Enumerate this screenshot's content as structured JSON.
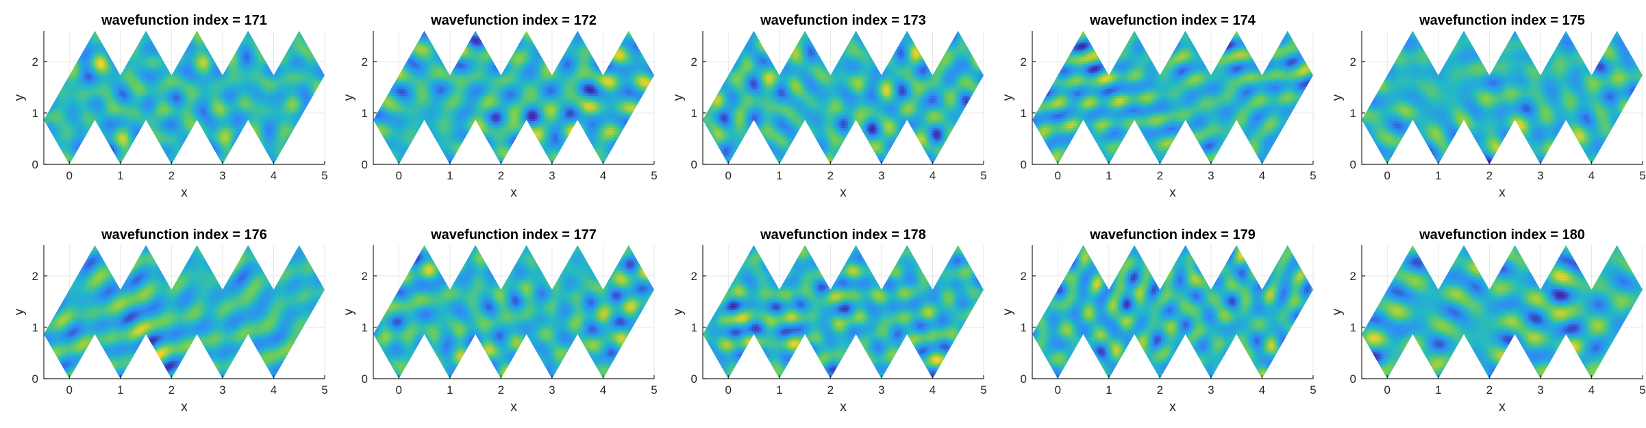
{
  "chart_data": {
    "type": "heatmap",
    "layout": {
      "rows": 2,
      "cols": 5
    },
    "xlabel": "x",
    "ylabel": "y",
    "xlim": [
      -0.5,
      5
    ],
    "ylim": [
      0,
      2.598
    ],
    "xticks": [
      0,
      1,
      2,
      3,
      4,
      5
    ],
    "yticks": [
      0,
      1,
      2
    ],
    "grid": true,
    "colormap": [
      "#3e26a8",
      "#2d8df4",
      "#23b8c6",
      "#6ccd5a",
      "#f9d225"
    ],
    "panels": [
      {
        "title": "wavefunction index = 171",
        "index": 171
      },
      {
        "title": "wavefunction index = 172",
        "index": 172
      },
      {
        "title": "wavefunction index = 173",
        "index": 173
      },
      {
        "title": "wavefunction index = 174",
        "index": 174
      },
      {
        "title": "wavefunction index = 175",
        "index": 175
      },
      {
        "title": "wavefunction index = 176",
        "index": 176
      },
      {
        "title": "wavefunction index = 177",
        "index": 177
      },
      {
        "title": "wavefunction index = 178",
        "index": 178
      },
      {
        "title": "wavefunction index = 179",
        "index": 179
      },
      {
        "title": "wavefunction index = 180",
        "index": 180
      }
    ]
  }
}
